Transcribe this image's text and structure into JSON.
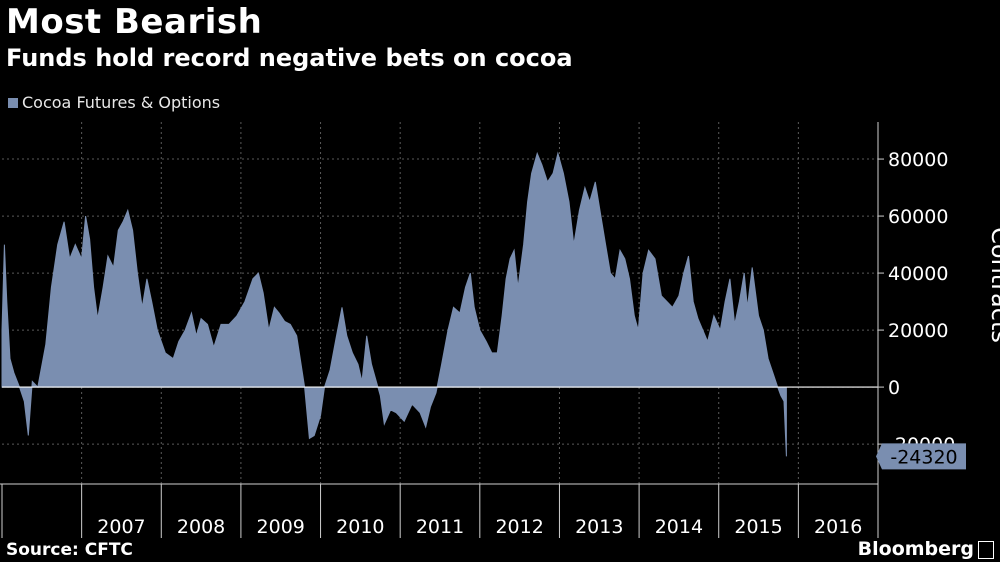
{
  "chart_data": {
    "type": "area",
    "title": "Most Bearish",
    "subtitle": "Funds hold record negative bets on cocoa",
    "series": [
      {
        "name": "Cocoa Futures & Options"
      }
    ],
    "ylabel": "Contracts",
    "ylim": [
      -34000,
      93000
    ],
    "yticks": [
      -20000,
      0,
      20000,
      40000,
      60000,
      80000
    ],
    "year_labels": [
      "2007",
      "2008",
      "2009",
      "2010",
      "2011",
      "2012",
      "2013",
      "2014",
      "2015",
      "2016"
    ],
    "xlim": [
      2006.0,
      2017.0
    ],
    "last_value_label": "-24320",
    "points": [
      [
        2006.0,
        20000
      ],
      [
        2006.03,
        50000
      ],
      [
        2006.06,
        30000
      ],
      [
        2006.1,
        10000
      ],
      [
        2006.15,
        5000
      ],
      [
        2006.22,
        0
      ],
      [
        2006.28,
        -5000
      ],
      [
        2006.33,
        -17000
      ],
      [
        2006.38,
        2000
      ],
      [
        2006.45,
        0
      ],
      [
        2006.55,
        15000
      ],
      [
        2006.62,
        35000
      ],
      [
        2006.7,
        50000
      ],
      [
        2006.78,
        58000
      ],
      [
        2006.85,
        45000
      ],
      [
        2006.92,
        50000
      ],
      [
        2007.0,
        45000
      ],
      [
        2007.05,
        60000
      ],
      [
        2007.1,
        52000
      ],
      [
        2007.15,
        35000
      ],
      [
        2007.2,
        24000
      ],
      [
        2007.27,
        35000
      ],
      [
        2007.33,
        46000
      ],
      [
        2007.4,
        42000
      ],
      [
        2007.46,
        55000
      ],
      [
        2007.52,
        58000
      ],
      [
        2007.58,
        62000
      ],
      [
        2007.64,
        55000
      ],
      [
        2007.7,
        40000
      ],
      [
        2007.76,
        28000
      ],
      [
        2007.82,
        38000
      ],
      [
        2007.88,
        30000
      ],
      [
        2007.95,
        20000
      ],
      [
        2008.05,
        12000
      ],
      [
        2008.15,
        10000
      ],
      [
        2008.22,
        16000
      ],
      [
        2008.3,
        20000
      ],
      [
        2008.38,
        26000
      ],
      [
        2008.44,
        18000
      ],
      [
        2008.5,
        24000
      ],
      [
        2008.58,
        22000
      ],
      [
        2008.66,
        14000
      ],
      [
        2008.75,
        22000
      ],
      [
        2008.85,
        22000
      ],
      [
        2008.95,
        25000
      ],
      [
        2009.05,
        30000
      ],
      [
        2009.15,
        38000
      ],
      [
        2009.22,
        40000
      ],
      [
        2009.28,
        33000
      ],
      [
        2009.35,
        20000
      ],
      [
        2009.42,
        28000
      ],
      [
        2009.48,
        26000
      ],
      [
        2009.55,
        23000
      ],
      [
        2009.62,
        22000
      ],
      [
        2009.7,
        18000
      ],
      [
        2009.8,
        0
      ],
      [
        2009.86,
        -18000
      ],
      [
        2009.92,
        -17000
      ],
      [
        2010.0,
        -10000
      ],
      [
        2010.05,
        0
      ],
      [
        2010.12,
        6000
      ],
      [
        2010.2,
        18000
      ],
      [
        2010.27,
        28000
      ],
      [
        2010.33,
        18000
      ],
      [
        2010.4,
        12000
      ],
      [
        2010.47,
        8000
      ],
      [
        2010.52,
        2000
      ],
      [
        2010.58,
        18000
      ],
      [
        2010.64,
        8000
      ],
      [
        2010.7,
        2000
      ],
      [
        2010.75,
        -3000
      ],
      [
        2010.8,
        -13000
      ],
      [
        2010.88,
        -8000
      ],
      [
        2010.95,
        -9000
      ],
      [
        2011.05,
        -12000
      ],
      [
        2011.15,
        -6000
      ],
      [
        2011.25,
        -9000
      ],
      [
        2011.32,
        -14000
      ],
      [
        2011.38,
        -7000
      ],
      [
        2011.45,
        -2000
      ],
      [
        2011.52,
        8000
      ],
      [
        2011.6,
        20000
      ],
      [
        2011.67,
        28000
      ],
      [
        2011.75,
        26000
      ],
      [
        2011.82,
        35000
      ],
      [
        2011.88,
        40000
      ],
      [
        2011.93,
        28000
      ],
      [
        2012.0,
        20000
      ],
      [
        2012.08,
        16000
      ],
      [
        2012.15,
        12000
      ],
      [
        2012.22,
        12000
      ],
      [
        2012.28,
        25000
      ],
      [
        2012.33,
        38000
      ],
      [
        2012.38,
        45000
      ],
      [
        2012.43,
        48000
      ],
      [
        2012.48,
        35000
      ],
      [
        2012.55,
        50000
      ],
      [
        2012.6,
        65000
      ],
      [
        2012.65,
        75000
      ],
      [
        2012.72,
        82000
      ],
      [
        2012.78,
        78000
      ],
      [
        2012.85,
        72000
      ],
      [
        2012.92,
        75000
      ],
      [
        2012.98,
        82000
      ],
      [
        2013.05,
        75000
      ],
      [
        2013.12,
        65000
      ],
      [
        2013.18,
        50000
      ],
      [
        2013.25,
        62000
      ],
      [
        2013.32,
        70000
      ],
      [
        2013.38,
        65000
      ],
      [
        2013.45,
        72000
      ],
      [
        2013.52,
        60000
      ],
      [
        2013.58,
        50000
      ],
      [
        2013.64,
        40000
      ],
      [
        2013.7,
        38000
      ],
      [
        2013.76,
        48000
      ],
      [
        2013.82,
        45000
      ],
      [
        2013.88,
        38000
      ],
      [
        2013.94,
        25000
      ],
      [
        2013.99,
        20000
      ],
      [
        2014.05,
        40000
      ],
      [
        2014.12,
        48000
      ],
      [
        2014.2,
        45000
      ],
      [
        2014.28,
        32000
      ],
      [
        2014.35,
        30000
      ],
      [
        2014.42,
        28000
      ],
      [
        2014.5,
        32000
      ],
      [
        2014.56,
        40000
      ],
      [
        2014.62,
        46000
      ],
      [
        2014.68,
        30000
      ],
      [
        2014.74,
        24000
      ],
      [
        2014.8,
        20000
      ],
      [
        2014.86,
        16000
      ],
      [
        2014.94,
        25000
      ],
      [
        2015.02,
        20000
      ],
      [
        2015.08,
        30000
      ],
      [
        2015.14,
        38000
      ],
      [
        2015.2,
        22000
      ],
      [
        2015.26,
        30000
      ],
      [
        2015.32,
        40000
      ],
      [
        2015.36,
        28000
      ],
      [
        2015.42,
        42000
      ],
      [
        2015.5,
        25000
      ],
      [
        2015.56,
        20000
      ],
      [
        2015.62,
        10000
      ],
      [
        2015.68,
        5000
      ],
      [
        2015.74,
        0
      ],
      [
        2015.78,
        -3000
      ],
      [
        2015.82,
        -5000
      ],
      [
        2015.85,
        -24320
      ]
    ]
  }
}
